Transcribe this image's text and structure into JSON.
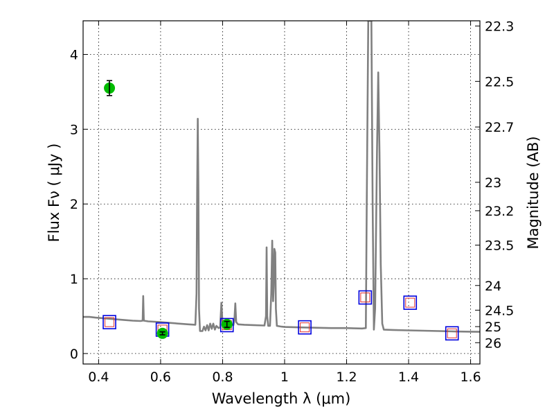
{
  "chart_data": {
    "type": "line",
    "xlabel": "Wavelength  λ (μm)",
    "ylabel": "Flux  Fν  ( μJy )",
    "y2label": "Magnitude (AB)",
    "xlim": [
      0.35,
      1.63
    ],
    "ylim": [
      -0.14,
      4.45
    ],
    "grid": true,
    "x_ticks": [
      0.4,
      0.6,
      0.8,
      1.0,
      1.2,
      1.4,
      1.6
    ],
    "x_tick_labels": [
      "0.4",
      "0.6",
      "0.8",
      "1",
      "1.2",
      "1.4",
      "1.6"
    ],
    "y_ticks": [
      0,
      1,
      2,
      3,
      4
    ],
    "y_tick_labels": [
      "0",
      "1",
      "2",
      "3",
      "4"
    ],
    "y2_ticks": [
      {
        "label": "22.3",
        "flux": 4.38
      },
      {
        "label": "22.5",
        "flux": 3.64
      },
      {
        "label": "22.7",
        "flux": 3.03
      },
      {
        "label": "23",
        "flux": 2.29
      },
      {
        "label": "23.2",
        "flux": 1.91
      },
      {
        "label": "23.5",
        "flux": 1.45
      },
      {
        "label": "24",
        "flux": 0.91
      },
      {
        "label": "24.5",
        "flux": 0.58
      },
      {
        "label": "25",
        "flux": 0.36
      },
      {
        "label": "26",
        "flux": 0.145
      }
    ],
    "colors": {
      "model": "#808080",
      "observed": "#00bb00",
      "synthetic_outer": "#0000dd",
      "synthetic_inner": "#e03030",
      "errorbar": "#000000"
    },
    "series": [
      {
        "kind": "model_spectrum",
        "points": [
          [
            0.35,
            0.49
          ],
          [
            0.37,
            0.49
          ],
          [
            0.39,
            0.48
          ],
          [
            0.42,
            0.47
          ],
          [
            0.45,
            0.46
          ],
          [
            0.48,
            0.45
          ],
          [
            0.51,
            0.44
          ],
          [
            0.535,
            0.435
          ],
          [
            0.542,
            0.44
          ],
          [
            0.544,
            0.77
          ],
          [
            0.546,
            0.44
          ],
          [
            0.56,
            0.43
          ],
          [
            0.6,
            0.42
          ],
          [
            0.63,
            0.41
          ],
          [
            0.66,
            0.4
          ],
          [
            0.69,
            0.39
          ],
          [
            0.712,
            0.385
          ],
          [
            0.716,
            0.8
          ],
          [
            0.718,
            2.2
          ],
          [
            0.72,
            3.14
          ],
          [
            0.722,
            2.2
          ],
          [
            0.724,
            0.6
          ],
          [
            0.727,
            0.3
          ],
          [
            0.735,
            0.3
          ],
          [
            0.74,
            0.36
          ],
          [
            0.745,
            0.31
          ],
          [
            0.75,
            0.38
          ],
          [
            0.755,
            0.31
          ],
          [
            0.76,
            0.4
          ],
          [
            0.765,
            0.33
          ],
          [
            0.77,
            0.4
          ],
          [
            0.775,
            0.32
          ],
          [
            0.78,
            0.37
          ],
          [
            0.787,
            0.34
          ],
          [
            0.792,
            0.35
          ],
          [
            0.796,
            0.68
          ],
          [
            0.8,
            0.4
          ],
          [
            0.805,
            0.42
          ],
          [
            0.812,
            0.4
          ],
          [
            0.82,
            0.4
          ],
          [
            0.828,
            0.39
          ],
          [
            0.835,
            0.38
          ],
          [
            0.838,
            0.45
          ],
          [
            0.841,
            0.67
          ],
          [
            0.844,
            0.42
          ],
          [
            0.85,
            0.39
          ],
          [
            0.87,
            0.385
          ],
          [
            0.9,
            0.38
          ],
          [
            0.935,
            0.375
          ],
          [
            0.94,
            0.5
          ],
          [
            0.942,
            1.42
          ],
          [
            0.944,
            0.5
          ],
          [
            0.947,
            0.37
          ],
          [
            0.953,
            0.37
          ],
          [
            0.957,
            0.8
          ],
          [
            0.96,
            1.51
          ],
          [
            0.963,
            0.7
          ],
          [
            0.965,
            0.9
          ],
          [
            0.967,
            1.4
          ],
          [
            0.97,
            1.35
          ],
          [
            0.972,
            0.6
          ],
          [
            0.975,
            0.37
          ],
          [
            0.99,
            0.36
          ],
          [
            1.0,
            0.355
          ],
          [
            1.05,
            0.35
          ],
          [
            1.1,
            0.345
          ],
          [
            1.15,
            0.34
          ],
          [
            1.2,
            0.34
          ],
          [
            1.25,
            0.335
          ],
          [
            1.262,
            0.34
          ],
          [
            1.265,
            2.0
          ],
          [
            1.27,
            4.45
          ],
          [
            1.28,
            4.45
          ],
          [
            1.284,
            2.0
          ],
          [
            1.288,
            0.32
          ],
          [
            1.292,
            0.6
          ],
          [
            1.298,
            2.7
          ],
          [
            1.302,
            3.76
          ],
          [
            1.306,
            2.7
          ],
          [
            1.31,
            1.2
          ],
          [
            1.315,
            0.4
          ],
          [
            1.32,
            0.32
          ],
          [
            1.35,
            0.315
          ],
          [
            1.4,
            0.31
          ],
          [
            1.45,
            0.305
          ],
          [
            1.5,
            0.3
          ],
          [
            1.55,
            0.295
          ],
          [
            1.6,
            0.292
          ],
          [
            1.63,
            0.29
          ]
        ]
      },
      {
        "kind": "observed_photometry",
        "points": [
          {
            "x": 0.435,
            "y": 3.55,
            "yerr": 0.1
          },
          {
            "x": 0.606,
            "y": 0.27,
            "yerr": 0.02
          },
          {
            "x": 0.814,
            "y": 0.39,
            "yerr": 0.04
          }
        ]
      },
      {
        "kind": "model_photometry",
        "points": [
          {
            "x": 0.435,
            "y": 0.42
          },
          {
            "x": 0.606,
            "y": 0.32
          },
          {
            "x": 0.814,
            "y": 0.38
          },
          {
            "x": 1.065,
            "y": 0.35
          },
          {
            "x": 1.26,
            "y": 0.75
          },
          {
            "x": 1.405,
            "y": 0.68
          },
          {
            "x": 1.54,
            "y": 0.27
          }
        ]
      }
    ]
  }
}
